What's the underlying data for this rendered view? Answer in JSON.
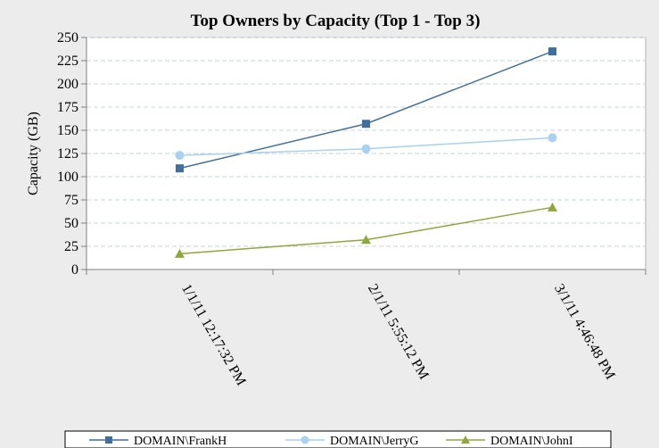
{
  "chart_data": {
    "type": "line",
    "title": "Top Owners by Capacity (Top 1 - Top 3)",
    "ylabel": "Capacity (GB)",
    "xlabel": "",
    "ylim": [
      0,
      250
    ],
    "yticks": [
      0,
      25,
      50,
      75,
      100,
      125,
      150,
      175,
      200,
      225,
      250
    ],
    "categories": [
      "1/1/11 12:17:32 PM",
      "2/1/11 5:55:12 PM",
      "3/1/11 4:46:48 PM"
    ],
    "grid": true,
    "legend_position": "bottom",
    "series": [
      {
        "name": "DOMAIN\\FrankH",
        "values": [
          109,
          157,
          235
        ],
        "color": "#3f6f9c",
        "marker": "square"
      },
      {
        "name": "DOMAIN\\JerryG",
        "values": [
          123,
          130,
          142
        ],
        "color": "#a9d1f2",
        "marker": "circle"
      },
      {
        "name": "DOMAIN\\JohnI",
        "values": [
          17,
          32,
          67
        ],
        "color": "#8fa83a",
        "marker": "triangle"
      }
    ]
  }
}
